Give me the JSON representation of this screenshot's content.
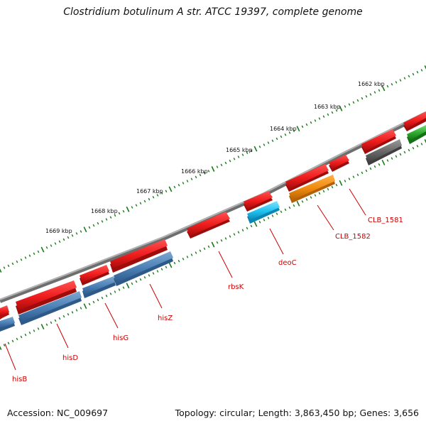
{
  "title": "Clostridium botulinum A str. ATCC 19397, complete genome",
  "footer": {
    "accession": "Accession: NC_009697",
    "summary": "Topology: circular; Length: 3,863,450 bp; Genes: 3,656"
  },
  "ruler_labels": [
    "1662 kbp",
    "1663 kbp",
    "1664 kbp",
    "1665 kbp",
    "1666 kbp",
    "1667 kbp",
    "1668 kbp",
    "1669 kbp"
  ],
  "gene_labels": [
    "hisB",
    "hisD",
    "hisG",
    "hisZ",
    "rbsK",
    "deoC",
    "CLB_1582",
    "CLB_1581"
  ],
  "colors": {
    "backbone": "#888888",
    "forward_cds": "#ee1c1c",
    "reverse_cds": "#4a7fb5",
    "reverse_cds_light": "#1ec1f0",
    "reverse_cds_orange": "#ef8a0c",
    "reverse_cds_gray": "#666666",
    "forward_cds_green": "#2aa52a",
    "tick_marks": "#1a7a1a",
    "label_text": "#cc0000"
  }
}
